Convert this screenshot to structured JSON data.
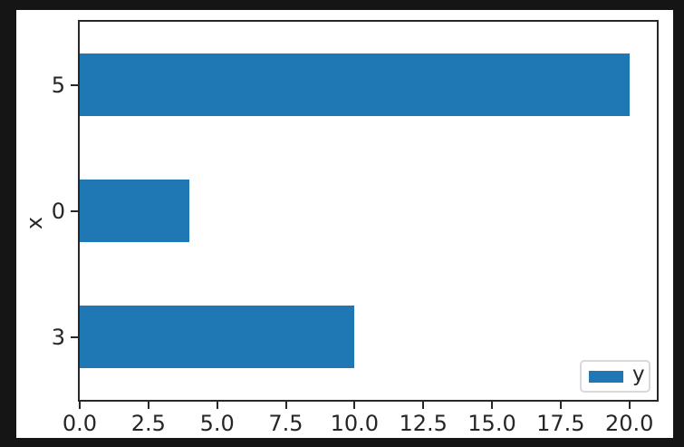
{
  "chart_data": {
    "type": "bar",
    "orientation": "horizontal",
    "title": "",
    "xlabel": "",
    "ylabel": "x",
    "categories_top_to_bottom": [
      "5",
      "0",
      "3"
    ],
    "bars_top_to_bottom": [
      {
        "category": "5",
        "value": 20
      },
      {
        "category": "0",
        "value": 4
      },
      {
        "category": "3",
        "value": 10
      }
    ],
    "series": [
      {
        "name": "y",
        "color": "#1f77b4"
      }
    ],
    "x_ticks": [
      "0.0",
      "2.5",
      "5.0",
      "7.5",
      "10.0",
      "12.5",
      "15.0",
      "17.5",
      "20.0"
    ],
    "xlim": [
      0,
      21
    ],
    "bar_fraction_of_row": 0.5,
    "grid": false,
    "legend": {
      "label": "y",
      "position": "lower right"
    }
  },
  "colors": {
    "bar": "#1f77b4",
    "page_background": "#151515",
    "figure_background": "#ffffff",
    "spine": "#282828",
    "text": "#262626",
    "legend_border": "#d9d9d9"
  }
}
